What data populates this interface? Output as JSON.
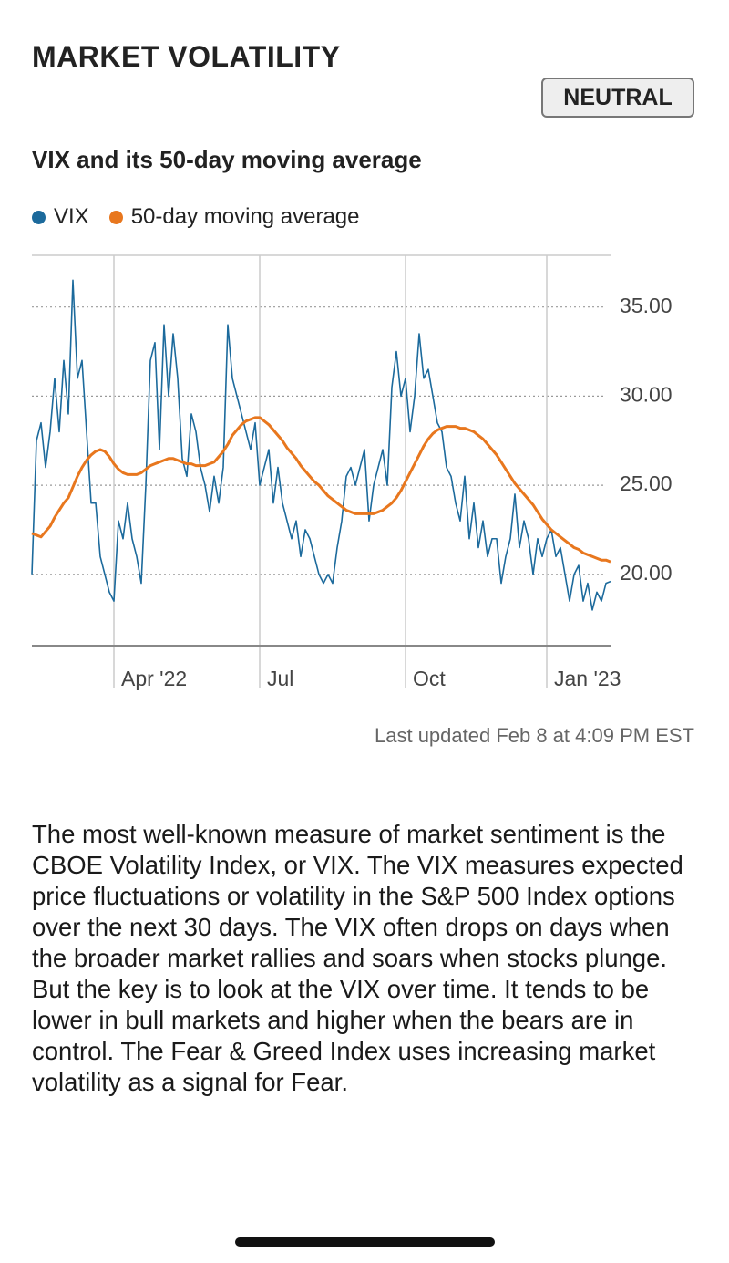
{
  "header": {
    "title": "MARKET VOLATILITY",
    "badge": "NEUTRAL"
  },
  "chart_data": {
    "type": "line",
    "title": "VIX and its 50-day moving average",
    "categories": [
      null,
      null,
      null,
      null,
      null,
      null,
      null,
      null,
      null,
      null,
      null,
      null,
      null,
      null,
      null,
      null,
      null,
      null,
      "Apr '22",
      null,
      null,
      null,
      null,
      null,
      null,
      null,
      null,
      null,
      null,
      null,
      null,
      null,
      null,
      null,
      null,
      null,
      null,
      null,
      null,
      null,
      null,
      null,
      null,
      null,
      null,
      null,
      null,
      null,
      null,
      null,
      "Jul",
      null,
      null,
      null,
      null,
      null,
      null,
      null,
      null,
      null,
      null,
      null,
      null,
      null,
      null,
      null,
      null,
      null,
      null,
      null,
      null,
      null,
      null,
      null,
      null,
      null,
      null,
      null,
      null,
      null,
      null,
      null,
      "Oct",
      null,
      null,
      null,
      null,
      null,
      null,
      null,
      null,
      null,
      null,
      null,
      null,
      null,
      null,
      null,
      null,
      null,
      null,
      null,
      null,
      null,
      null,
      null,
      null,
      null,
      null,
      null,
      null,
      null,
      null,
      "Jan '23",
      null,
      null,
      null,
      null,
      null,
      null,
      null,
      null,
      null,
      null,
      null,
      null,
      null,
      null
    ],
    "series": [
      {
        "name": "VIX",
        "color": "#1c6a9c",
        "values": [
          20.0,
          27.5,
          28.5,
          26,
          28,
          31,
          28,
          32,
          29,
          36.5,
          31,
          32,
          28,
          24,
          24,
          21,
          20,
          19,
          18.5,
          23,
          22,
          24,
          22,
          21,
          19.5,
          25,
          32,
          33,
          27,
          34,
          30,
          33.5,
          31,
          26.5,
          25.5,
          29,
          28,
          26,
          25,
          23.5,
          25.5,
          24,
          26,
          34,
          31,
          30,
          29,
          28,
          27,
          28.5,
          25,
          26,
          27,
          24,
          26,
          24,
          23,
          22,
          23,
          21,
          22.5,
          22,
          21,
          20,
          19.5,
          20,
          19.5,
          21.5,
          23,
          25.5,
          26,
          25,
          26,
          27,
          23,
          25,
          26,
          27,
          25,
          30.5,
          32.5,
          30,
          31,
          28,
          30,
          33.5,
          31,
          31.5,
          30,
          28.5,
          28,
          26,
          25.5,
          24,
          23,
          25.5,
          22,
          24,
          21.5,
          23,
          21,
          22,
          22,
          19.5,
          21,
          22,
          24.5,
          21.5,
          23,
          22,
          20,
          22,
          21,
          22,
          22.5,
          21,
          21.5,
          20,
          18.5,
          20,
          20.5,
          18.5,
          19.5,
          18,
          19,
          18.5,
          19.5,
          19.6
        ]
      },
      {
        "name": "50-day moving average",
        "color": "#e8771e",
        "values": [
          22.3,
          22.2,
          22.1,
          22.4,
          22.7,
          23.2,
          23.6,
          24.0,
          24.3,
          24.9,
          25.5,
          26.0,
          26.4,
          26.7,
          26.9,
          27.0,
          26.9,
          26.6,
          26.2,
          25.9,
          25.7,
          25.6,
          25.6,
          25.6,
          25.7,
          25.9,
          26.1,
          26.2,
          26.3,
          26.4,
          26.5,
          26.5,
          26.4,
          26.3,
          26.2,
          26.2,
          26.1,
          26.1,
          26.1,
          26.2,
          26.3,
          26.6,
          26.9,
          27.3,
          27.8,
          28.1,
          28.4,
          28.6,
          28.7,
          28.8,
          28.8,
          28.6,
          28.4,
          28.1,
          27.8,
          27.5,
          27.1,
          26.8,
          26.5,
          26.1,
          25.8,
          25.5,
          25.2,
          25.0,
          24.7,
          24.4,
          24.2,
          24.0,
          23.8,
          23.6,
          23.5,
          23.4,
          23.4,
          23.4,
          23.4,
          23.4,
          23.5,
          23.6,
          23.8,
          24.0,
          24.3,
          24.7,
          25.2,
          25.7,
          26.2,
          26.7,
          27.2,
          27.6,
          27.9,
          28.1,
          28.2,
          28.3,
          28.3,
          28.3,
          28.2,
          28.2,
          28.1,
          28.0,
          27.8,
          27.6,
          27.3,
          27.0,
          26.7,
          26.3,
          25.9,
          25.5,
          25.1,
          24.8,
          24.5,
          24.2,
          23.9,
          23.5,
          23.1,
          22.8,
          22.5,
          22.3,
          22.1,
          21.9,
          21.7,
          21.5,
          21.4,
          21.2,
          21.1,
          21.0,
          20.9,
          20.8,
          20.8,
          20.7
        ]
      }
    ],
    "ylim": [
      16,
      37.9
    ],
    "yticks": [
      {
        "value": 20,
        "label": "20.00"
      },
      {
        "value": 25,
        "label": "25.00"
      },
      {
        "value": 30,
        "label": "30.00"
      },
      {
        "value": 35,
        "label": "35.00"
      }
    ],
    "grid": true,
    "legend": "top",
    "note": "Last updated Feb 8 at 4:09 PM EST"
  },
  "body": {
    "paragraph": "The most well-known measure of market sentiment is the CBOE Volatility Index, or VIX. The VIX measures expected price fluctuations or volatility in the S&P 500 Index options over the next 30 days. The VIX often drops on days when the broader market rallies and soars when stocks plunge. But the key is to look at the VIX over time. It tends to be lower in bull markets and higher when the bears are in control. The Fear & Greed Index uses increasing market volatility as a signal for Fear."
  }
}
